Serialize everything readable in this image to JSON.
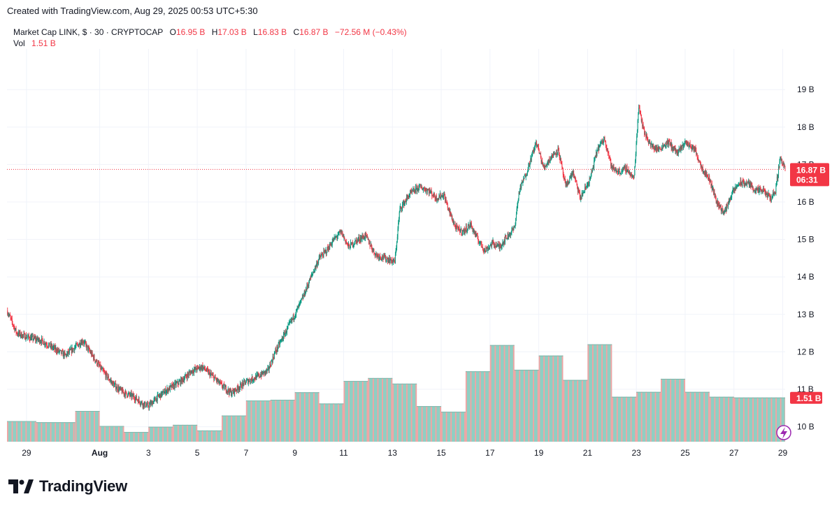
{
  "header": {
    "created_text": "Created with TradingView.com, Aug 29, 2025 00:53 UTC+5:30"
  },
  "legend": {
    "symbol": "Market Cap LINK, $ · 30 · CRYPTOCAP",
    "open_label": "O",
    "open_value": "16.95 B",
    "high_label": "H",
    "high_value": "17.03 B",
    "low_label": "L",
    "low_value": "16.83 B",
    "close_label": "C",
    "close_value": "16.87 B",
    "change_value": "−72.56 M (−0.43%)",
    "vol_label": "Vol",
    "vol_value": "1.51 B"
  },
  "footer": {
    "brand": "TradingView"
  },
  "colors": {
    "up": "#089981",
    "down": "#f23645",
    "vol_up": "#8fcfc3",
    "vol_down": "#f5a3a3",
    "grid": "#f0f3fa",
    "price_tag": "#f23645"
  },
  "chart_data": {
    "type": "line",
    "subtype": "candlestick",
    "title": "Market Cap LINK, $ · 30 · CRYPTOCAP",
    "xlabel": "",
    "ylabel": "",
    "x_tick_labels": [
      "29",
      "Aug",
      "3",
      "5",
      "7",
      "9",
      "11",
      "13",
      "15",
      "17",
      "19",
      "21",
      "23",
      "25",
      "27",
      "29"
    ],
    "x_tick_days": [
      -3,
      0,
      2,
      4,
      6,
      8,
      10,
      12,
      14,
      16,
      18,
      20,
      22,
      24,
      26,
      28
    ],
    "x_range_days": [
      -3.8,
      28.1
    ],
    "y_tick_labels": [
      "19 B",
      "18 B",
      "17 B",
      "16 B",
      "15 B",
      "14 B",
      "13 B",
      "12 B",
      "11 B",
      "10 B"
    ],
    "y_tick_values": [
      19,
      18,
      17,
      16,
      15,
      14,
      13,
      12,
      11,
      10
    ],
    "ylim": [
      9.6,
      19.9
    ],
    "grid": true,
    "price_path": {
      "day": [
        -3.8,
        -3.4,
        -3.0,
        -2.4,
        -1.9,
        -1.4,
        -0.7,
        -0.3,
        0.1,
        0.6,
        1.0,
        1.4,
        1.8,
        2.0,
        2.4,
        2.8,
        3.3,
        3.8,
        4.2,
        4.7,
        5.0,
        5.4,
        6.0,
        6.5,
        6.9,
        7.2,
        7.6,
        8.0,
        8.3,
        8.6,
        9.0,
        9.3,
        9.6,
        9.9,
        10.2,
        10.6,
        10.9,
        11.3,
        11.7,
        12.1,
        12.3,
        12.7,
        13.1,
        13.5,
        13.8,
        14.1,
        14.3,
        14.6,
        14.9,
        15.2,
        15.5,
        15.8,
        16.1,
        16.4,
        16.6,
        17.0,
        17.2,
        17.5,
        17.9,
        18.2,
        18.5,
        18.8,
        19.1,
        19.4,
        19.7,
        20.1,
        20.4,
        20.7,
        21.0,
        21.3,
        21.6,
        21.9,
        22.1,
        22.3,
        22.6,
        22.9,
        23.3,
        23.7,
        24.0,
        24.4,
        24.7,
        25.0,
        25.3,
        25.6,
        25.9,
        26.2,
        26.6,
        26.9,
        27.2,
        27.5,
        27.7,
        27.9,
        28.1
      ],
      "value": [
        13.1,
        12.5,
        12.4,
        12.3,
        12.1,
        11.9,
        12.3,
        11.9,
        11.5,
        11.1,
        10.9,
        10.8,
        10.6,
        10.55,
        10.8,
        11.0,
        11.2,
        11.5,
        11.6,
        11.3,
        11.1,
        10.9,
        11.2,
        11.35,
        11.5,
        12.0,
        12.5,
        13.0,
        13.4,
        13.9,
        14.5,
        14.7,
        15.0,
        15.2,
        14.8,
        15.0,
        15.1,
        14.6,
        14.5,
        14.4,
        15.8,
        16.2,
        16.4,
        16.3,
        16.1,
        16.2,
        15.8,
        15.3,
        15.2,
        15.4,
        15.0,
        14.7,
        14.9,
        14.8,
        15.0,
        15.3,
        16.3,
        16.8,
        17.6,
        16.9,
        17.2,
        17.4,
        16.4,
        16.8,
        16.1,
        16.6,
        17.4,
        17.7,
        16.9,
        16.8,
        16.9,
        16.6,
        18.6,
        17.9,
        17.5,
        17.4,
        17.6,
        17.3,
        17.6,
        17.4,
        16.9,
        16.6,
        16.0,
        15.7,
        16.2,
        16.5,
        16.5,
        16.3,
        16.3,
        16.1,
        16.3,
        17.2,
        16.87
      ]
    },
    "volume": {
      "label": "Vol",
      "axis_range": [
        9.6,
        19.9
      ],
      "segments": [
        {
          "start": -3.8,
          "end": -2.6,
          "value": 10.15
        },
        {
          "start": -2.6,
          "end": -1.0,
          "value": 10.12
        },
        {
          "start": -1.0,
          "end": 0.0,
          "value": 10.42
        },
        {
          "start": 0.0,
          "end": 1.0,
          "value": 10.02
        },
        {
          "start": 1.0,
          "end": 2.0,
          "value": 9.86
        },
        {
          "start": 2.0,
          "end": 3.0,
          "value": 10.0
        },
        {
          "start": 3.0,
          "end": 4.0,
          "value": 10.05
        },
        {
          "start": 4.0,
          "end": 5.0,
          "value": 9.9
        },
        {
          "start": 5.0,
          "end": 6.0,
          "value": 10.3
        },
        {
          "start": 6.0,
          "end": 7.0,
          "value": 10.7
        },
        {
          "start": 7.0,
          "end": 8.0,
          "value": 10.72
        },
        {
          "start": 8.0,
          "end": 9.0,
          "value": 10.92
        },
        {
          "start": 9.0,
          "end": 10.0,
          "value": 10.62
        },
        {
          "start": 10.0,
          "end": 11.0,
          "value": 11.22
        },
        {
          "start": 11.0,
          "end": 12.0,
          "value": 11.3
        },
        {
          "start": 12.0,
          "end": 13.0,
          "value": 11.15
        },
        {
          "start": 13.0,
          "end": 14.0,
          "value": 10.55
        },
        {
          "start": 14.0,
          "end": 15.0,
          "value": 10.4
        },
        {
          "start": 15.0,
          "end": 16.0,
          "value": 11.48
        },
        {
          "start": 16.0,
          "end": 17.0,
          "value": 12.18
        },
        {
          "start": 17.0,
          "end": 18.0,
          "value": 11.52
        },
        {
          "start": 18.0,
          "end": 19.0,
          "value": 11.9
        },
        {
          "start": 19.0,
          "end": 20.0,
          "value": 11.25
        },
        {
          "start": 20.0,
          "end": 21.0,
          "value": 12.2
        },
        {
          "start": 21.0,
          "end": 22.0,
          "value": 10.8
        },
        {
          "start": 22.0,
          "end": 23.0,
          "value": 10.93
        },
        {
          "start": 23.0,
          "end": 24.0,
          "value": 11.28
        },
        {
          "start": 24.0,
          "end": 25.0,
          "value": 10.93
        },
        {
          "start": 25.0,
          "end": 26.0,
          "value": 10.8
        },
        {
          "start": 26.0,
          "end": 28.1,
          "value": 10.78
        }
      ]
    },
    "last_price": {
      "value": 16.87,
      "label": "16.87 B",
      "countdown": "06:31"
    },
    "last_volume": {
      "value": 10.78,
      "label": "1.51 B"
    },
    "legend_position": "top-left"
  }
}
